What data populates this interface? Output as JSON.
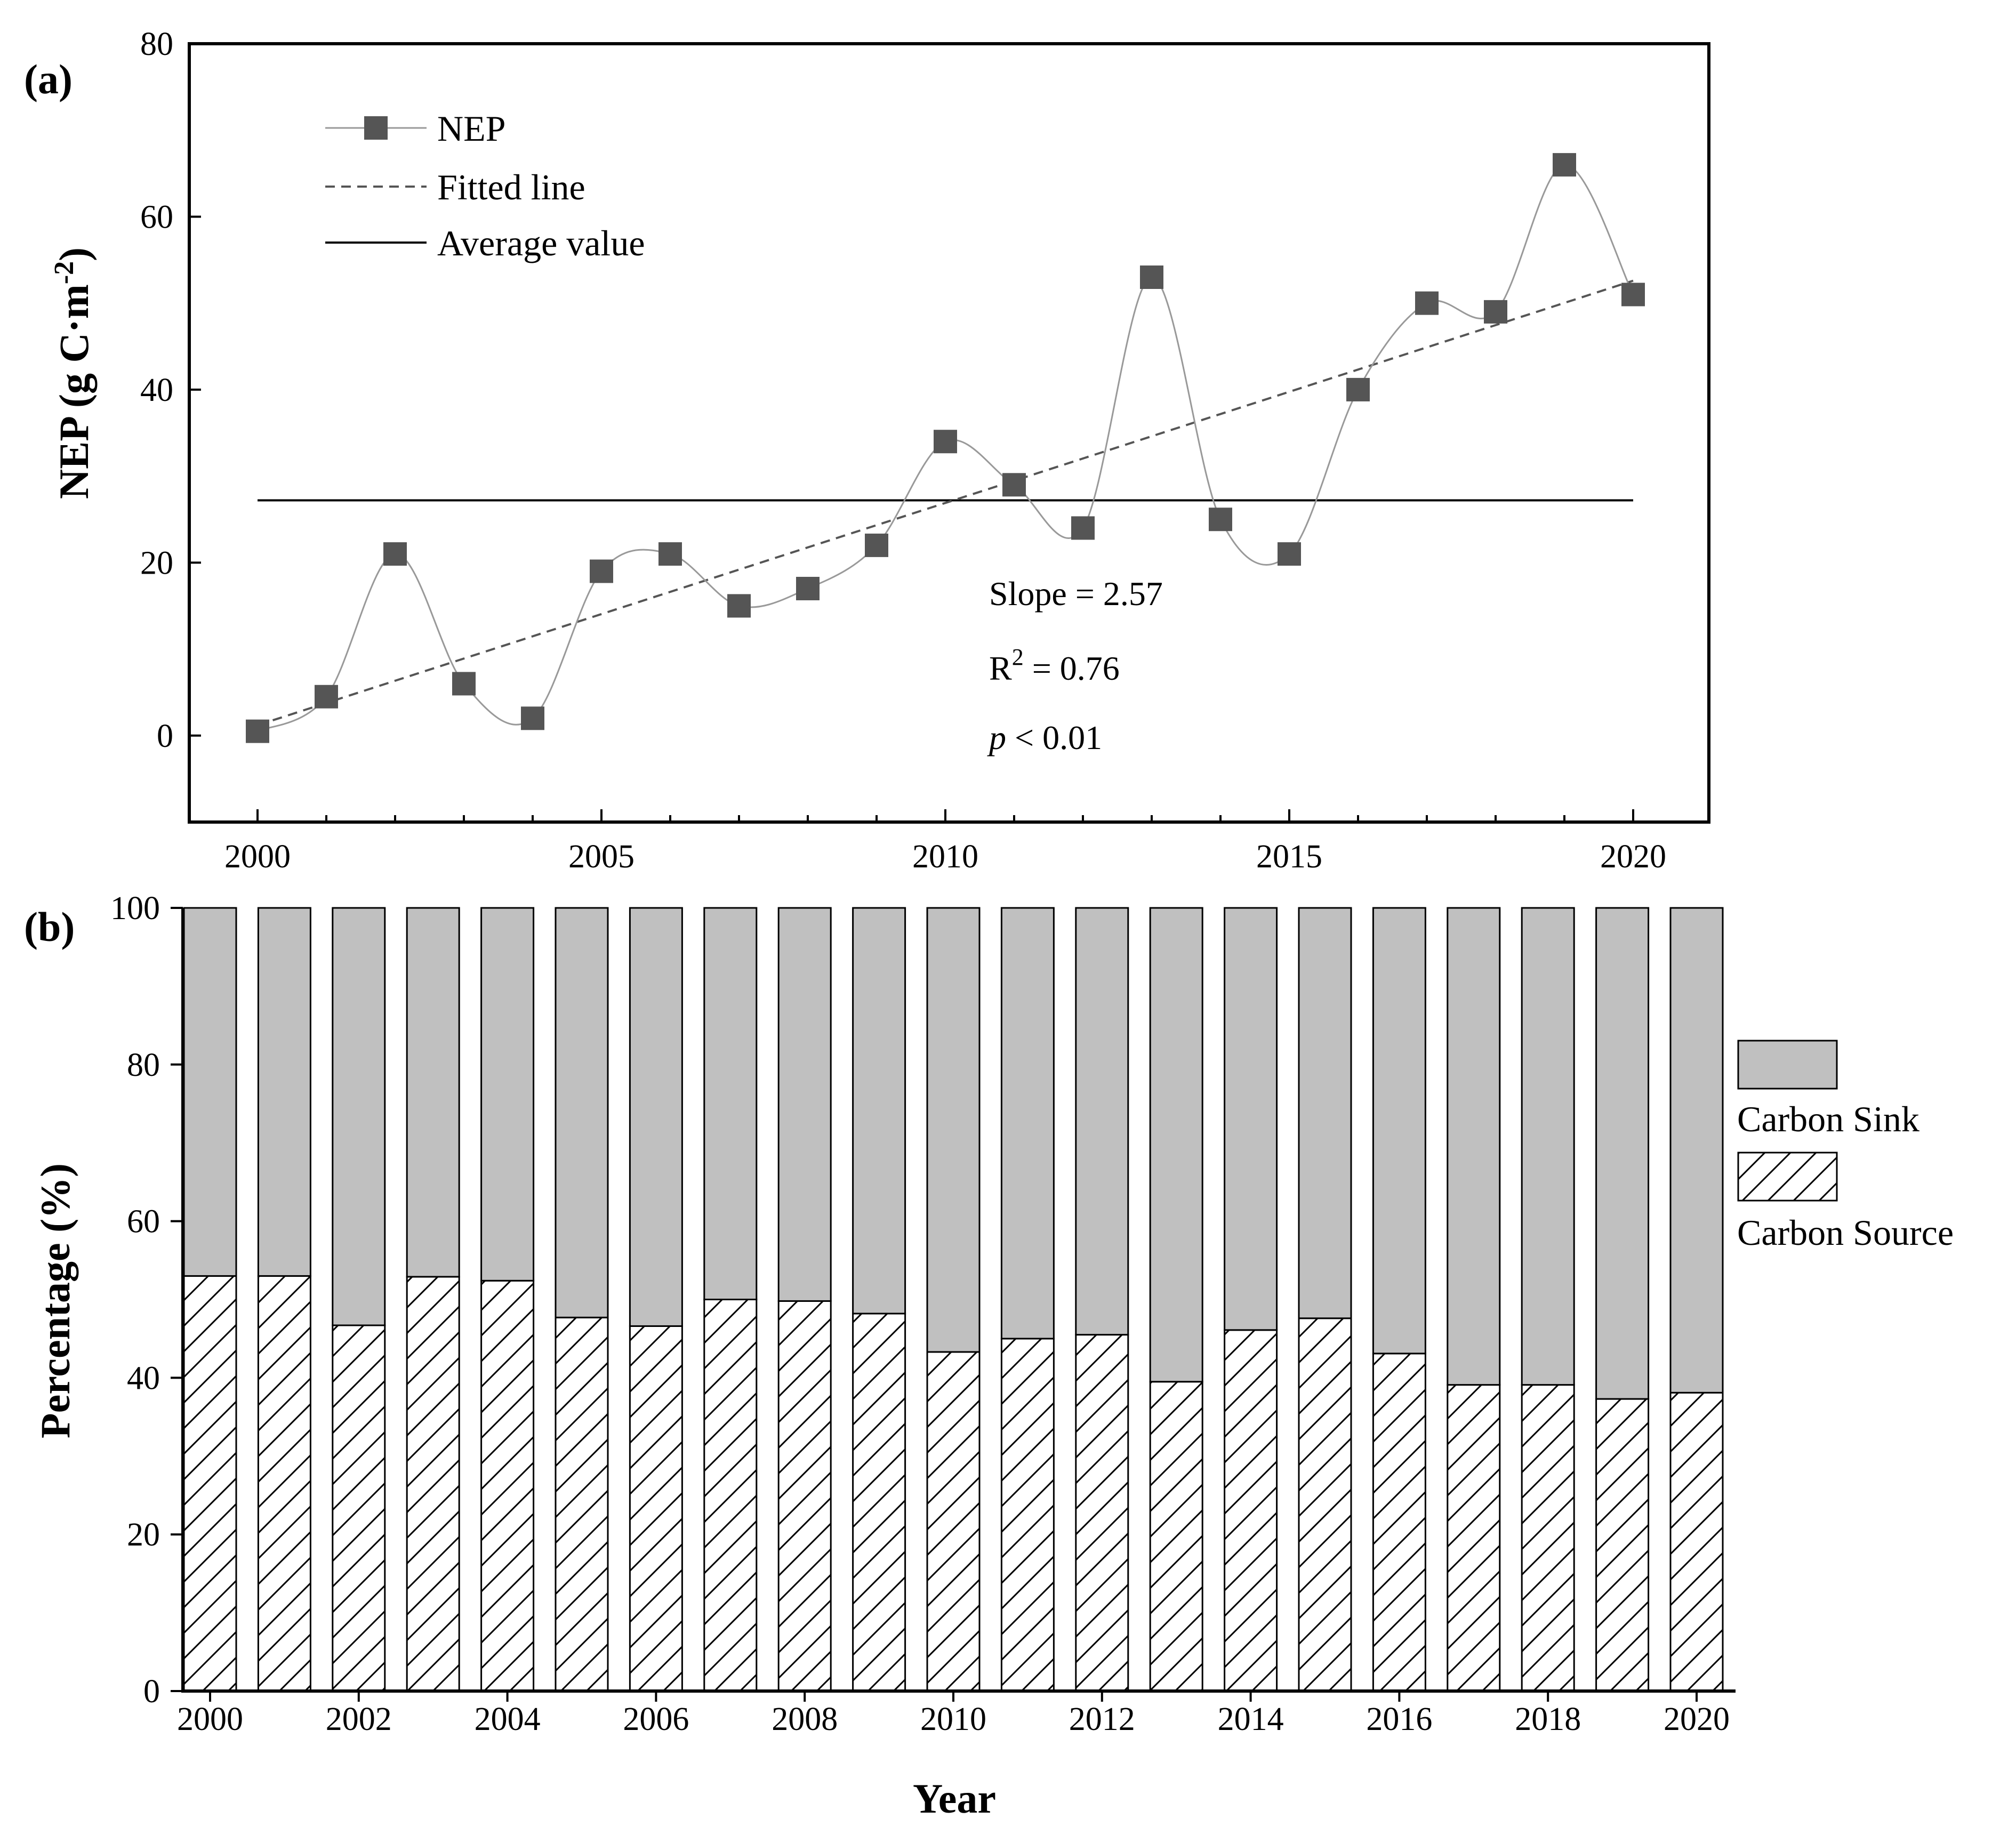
{
  "chart_data": [
    {
      "panel": "(a)",
      "type": "line",
      "xlabel": "",
      "ylabel": "NEP (g C·m",
      "ylabel_sup": "-2",
      "ylabel_close": ")",
      "xlim": [
        1999,
        2021
      ],
      "ylim": [
        -10,
        80
      ],
      "xticks": [
        2000,
        2005,
        2010,
        2015,
        2020
      ],
      "yticks": [
        0,
        20,
        40,
        60,
        80
      ],
      "x": [
        2000,
        2001,
        2002,
        2003,
        2004,
        2005,
        2006,
        2007,
        2008,
        2009,
        2010,
        2011,
        2012,
        2013,
        2014,
        2015,
        2016,
        2017,
        2018,
        2019,
        2020
      ],
      "series": [
        {
          "name": "NEP",
          "style": "line-with-square-markers",
          "values": [
            0.5,
            4.5,
            21,
            6,
            2,
            19,
            21,
            15,
            17,
            22,
            34,
            29,
            24,
            53,
            25,
            21,
            40,
            50,
            49,
            66,
            51
          ]
        },
        {
          "name": "Fitted line",
          "style": "dashed",
          "x": [
            2000,
            2020
          ],
          "values": [
            1.2,
            52.6
          ]
        },
        {
          "name": "Average value",
          "style": "solid",
          "x": [
            2000,
            2020
          ],
          "values": [
            27.2,
            27.2
          ]
        }
      ],
      "legend": [
        "NEP",
        "Fitted line",
        "Average value"
      ],
      "legend_position": "top-left",
      "annotations": {
        "slope": "Slope = 2.57",
        "r2_prefix": "R",
        "r2_sup": "2",
        "r2_value": " = 0.76",
        "p_symbol": "p",
        "p_value": " < 0.01"
      },
      "colors": {
        "marker": "#555555",
        "line": "#999999",
        "fit": "#555555",
        "avg": "#000000"
      }
    },
    {
      "panel": "(b)",
      "type": "bar",
      "stacked": true,
      "xlabel": "Year",
      "ylabel": "Percentage (%)",
      "ylim": [
        0,
        100
      ],
      "yticks": [
        0,
        20,
        40,
        60,
        80,
        100
      ],
      "categories": [
        "2000",
        "2001",
        "2002",
        "2003",
        "2004",
        "2005",
        "2006",
        "2007",
        "2008",
        "2009",
        "2010",
        "2011",
        "2012",
        "2013",
        "2014",
        "2015",
        "2016",
        "2017",
        "2018",
        "2019",
        "2020"
      ],
      "tick_labels": [
        "2000",
        "2002",
        "2004",
        "2006",
        "2008",
        "2010",
        "2012",
        "2014",
        "2016",
        "2018",
        "2020"
      ],
      "series": [
        {
          "name": "Carbon Source",
          "fill": "hatched",
          "values": [
            53,
            53,
            46.7,
            52.9,
            52.4,
            47.7,
            46.6,
            50,
            49.8,
            48.2,
            43.3,
            45,
            45.5,
            39.5,
            46.1,
            47.6,
            43.1,
            39.1,
            39.1,
            37.3,
            38.1
          ]
        },
        {
          "name": "Carbon Sink",
          "fill": "gray",
          "values": [
            47,
            47,
            53.3,
            47.1,
            47.6,
            52.3,
            53.4,
            50,
            50.2,
            51.8,
            56.7,
            55,
            54.5,
            60.5,
            53.9,
            52.4,
            56.9,
            60.9,
            60.9,
            62.7,
            61.9
          ]
        }
      ],
      "legend": [
        "Carbon Sink",
        "Carbon Source"
      ],
      "legend_position": "right",
      "colors": {
        "sink": "#c0c0c0",
        "source": "#ffffff",
        "hatch": "#000000"
      }
    }
  ]
}
